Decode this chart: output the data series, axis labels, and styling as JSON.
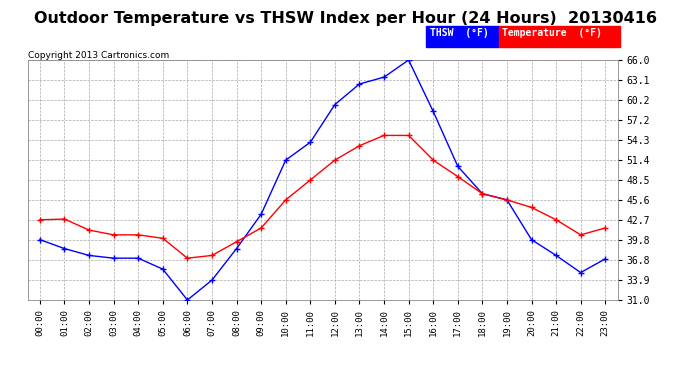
{
  "title": "Outdoor Temperature vs THSW Index per Hour (24 Hours)  20130416",
  "copyright": "Copyright 2013 Cartronics.com",
  "hours": [
    "00:00",
    "01:00",
    "02:00",
    "03:00",
    "04:00",
    "05:00",
    "06:00",
    "07:00",
    "08:00",
    "09:00",
    "10:00",
    "11:00",
    "12:00",
    "13:00",
    "14:00",
    "15:00",
    "16:00",
    "17:00",
    "18:00",
    "19:00",
    "20:00",
    "21:00",
    "22:00",
    "23:00"
  ],
  "thsw": [
    39.8,
    38.5,
    37.5,
    37.1,
    37.1,
    35.5,
    31.0,
    33.9,
    38.5,
    43.5,
    51.4,
    54.0,
    59.5,
    62.5,
    63.5,
    66.0,
    58.5,
    50.5,
    46.5,
    45.6,
    39.8,
    37.5,
    35.0,
    37.0
  ],
  "temperature": [
    42.7,
    42.8,
    41.2,
    40.5,
    40.5,
    40.0,
    37.1,
    37.5,
    39.5,
    41.5,
    45.6,
    48.5,
    51.4,
    53.5,
    55.0,
    55.0,
    51.4,
    49.0,
    46.5,
    45.6,
    44.5,
    42.7,
    40.5,
    41.5
  ],
  "thsw_color": "#0000ff",
  "temp_color": "#ff0000",
  "bg_color": "#ffffff",
  "grid_color": "#aaaaaa",
  "ylim_min": 31.0,
  "ylim_max": 66.0,
  "yticks": [
    31.0,
    33.9,
    36.8,
    39.8,
    42.7,
    45.6,
    48.5,
    51.4,
    54.3,
    57.2,
    60.2,
    63.1,
    66.0
  ],
  "title_fontsize": 11.5,
  "copyright_fontsize": 6.5,
  "legend_thsw_label": "THSW  (°F)",
  "legend_temp_label": "Temperature  (°F)"
}
